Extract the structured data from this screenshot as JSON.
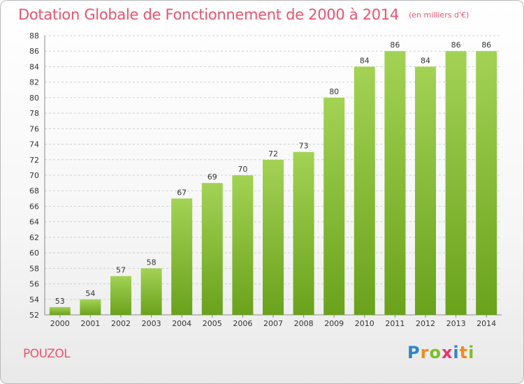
{
  "title": "Dotation Globale de Fonctionnement de 2000 à 2014",
  "unit": "(en milliers d'€)",
  "commune": "POUZOL",
  "logo": {
    "letters": [
      "P",
      "r",
      "o",
      "x",
      "i",
      "t",
      "i"
    ],
    "colors": [
      "#2f86c8",
      "#f08c1f",
      "#7bbf2a",
      "#e8366a",
      "#2f86c8",
      "#f08c1f",
      "#7bbf2a"
    ]
  },
  "colors": {
    "title": "#e8536e",
    "bar_top": "#a3d255",
    "bar_bottom": "#6aa21c",
    "grid": "#d0d0d0",
    "text": "#333333"
  },
  "chart_data": {
    "type": "bar",
    "title": "Dotation Globale de Fonctionnement de 2000 à 2014",
    "subtitle": "(en milliers d'€)",
    "xlabel": "",
    "ylabel": "",
    "ylim": [
      52,
      88
    ],
    "ytick_step": 2,
    "grid": true,
    "categories": [
      "2000",
      "2001",
      "2002",
      "2003",
      "2004",
      "2005",
      "2006",
      "2007",
      "2008",
      "2009",
      "2010",
      "2011",
      "2012",
      "2013",
      "2014"
    ],
    "values": [
      53,
      54,
      57,
      58,
      67,
      69,
      70,
      72,
      73,
      80,
      84,
      86,
      84,
      86,
      86
    ]
  }
}
